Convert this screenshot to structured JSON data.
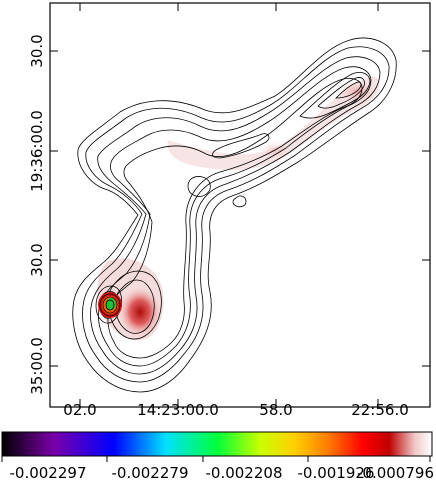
{
  "figure": {
    "x_ticks": [
      "02.0",
      "14:23:00.0",
      "58.0",
      "22:56.0"
    ],
    "y_ticks": [
      "30.0",
      "19:36:00.0",
      "30.0",
      "35:00.0"
    ],
    "colorbar": {
      "tick_labels": [
        "-0.002297",
        "-0.002279",
        "-0.002208",
        "-0.001926",
        "-0.000796"
      ],
      "colors": [
        "#000000",
        "#7a00a8",
        "#0000ff",
        "#00e0ff",
        "#00ff3c",
        "#c8ff00",
        "#ffd000",
        "#ff7a00",
        "#ff0000",
        "#c00000",
        "#ffffff"
      ]
    },
    "colors": {
      "contour": "#000000",
      "emission_faint": "#f4d6d6",
      "emission_medium": "#e08a8a",
      "emission_peak": "#c41010",
      "core_green": "#19c43a",
      "frame": "#000000"
    }
  }
}
